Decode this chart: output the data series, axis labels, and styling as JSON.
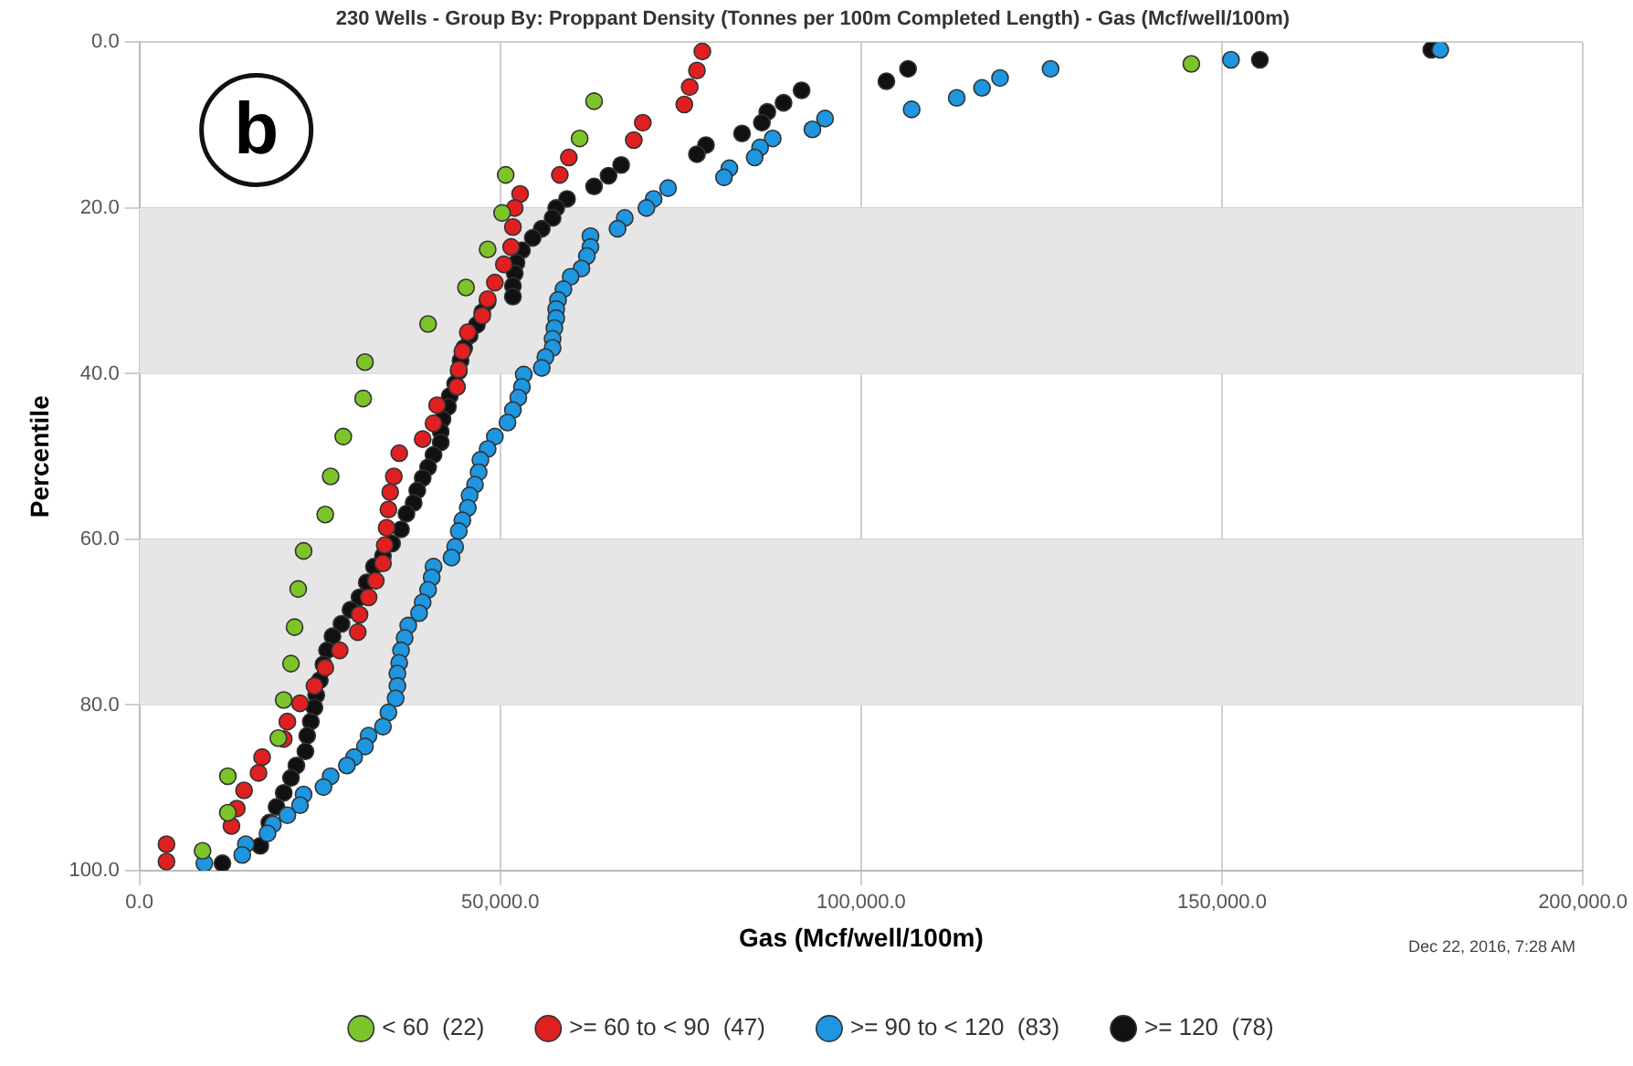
{
  "chart_data": {
    "type": "scatter",
    "title": "230 Wells - Group By: Proppant Density (Tonnes per 100m Completed Length) - Gas (Mcf/well/100m)",
    "xlabel": "Gas (Mcf/well/100m)",
    "ylabel": "Percentile",
    "annotations": [
      "b",
      "Dec 22, 2016, 7:28 AM"
    ],
    "xlim": [
      0,
      200000
    ],
    "xticks": [
      {
        "value": 0,
        "label": "0.0"
      },
      {
        "value": 50000,
        "label": "50,000.0"
      },
      {
        "value": 100000,
        "label": "100,000.0"
      },
      {
        "value": 150000,
        "label": "150,000.0"
      },
      {
        "value": 200000,
        "label": "200,000.0"
      }
    ],
    "ylim": [
      100,
      0
    ],
    "yticks": [
      {
        "value": 0,
        "label": "0.0"
      },
      {
        "value": 20,
        "label": "20.0"
      },
      {
        "value": 40,
        "label": "40.0"
      },
      {
        "value": 60,
        "label": "60.0"
      },
      {
        "value": 80,
        "label": "80.0"
      },
      {
        "value": 100,
        "label": "100.0"
      }
    ],
    "grid": true,
    "legend": "bottom",
    "marker": "circle",
    "bands": [
      {
        "axis": "y",
        "from": 20,
        "to": 40,
        "color": "#e6e6e6"
      },
      {
        "axis": "y",
        "from": 60,
        "to": 80,
        "color": "#e6e6e6"
      }
    ],
    "series": [
      {
        "name": "< 60  (22)",
        "color": "#7cc42a",
        "x": [
          145750,
          63000,
          61000,
          50750,
          50250,
          48250,
          45250,
          40000,
          31250,
          31000,
          28250,
          26500,
          25750,
          22750,
          22000,
          21500,
          21000,
          20000,
          19250,
          12250,
          12250,
          8750
        ],
        "values": [
          2.6,
          7.1,
          11.6,
          16,
          20.6,
          25,
          29.6,
          34,
          38.6,
          43,
          47.6,
          52.4,
          57,
          61.4,
          66,
          70.6,
          75,
          79.4,
          84,
          88.6,
          93,
          97.6
        ]
      },
      {
        "name": ">= 60 to < 90  (47)",
        "color": "#e02020",
        "x": [
          78000,
          77250,
          76250,
          75500,
          69750,
          68500,
          59500,
          58250,
          52750,
          52000,
          51750,
          51500,
          50500,
          49250,
          48250,
          47500,
          45500,
          44750,
          44250,
          44000,
          41250,
          40750,
          39250,
          36000,
          35250,
          34750,
          34500,
          34250,
          34000,
          33750,
          32750,
          31750,
          30500,
          30250,
          27750,
          25750,
          24250,
          22250,
          20500,
          20000,
          17000,
          16500,
          14500,
          13500,
          12750,
          3750,
          3750
        ],
        "values": [
          1.1,
          3.4,
          5.4,
          7.5,
          9.7,
          11.8,
          13.9,
          16,
          18.3,
          20,
          22.3,
          24.7,
          26.8,
          29,
          31,
          33,
          35,
          37.3,
          39.5,
          41.6,
          43.8,
          46,
          47.9,
          49.6,
          52.4,
          54.3,
          56.4,
          58.6,
          60.7,
          62.9,
          65,
          67,
          69.1,
          71.2,
          73.4,
          75.5,
          77.7,
          79.8,
          82,
          84.1,
          86.3,
          88.2,
          90.3,
          92.5,
          94.6,
          96.8,
          98.9
        ]
      },
      {
        "name": ">= 90 to < 120  (83)",
        "color": "#1e96e0",
        "x": [
          180250,
          151250,
          126250,
          119250,
          116750,
          113250,
          107000,
          95000,
          93250,
          87750,
          86000,
          85250,
          81750,
          81000,
          73250,
          71250,
          70250,
          67250,
          66250,
          62500,
          62500,
          62000,
          61250,
          59750,
          58750,
          58000,
          57750,
          57750,
          57500,
          57250,
          57250,
          56250,
          55750,
          53250,
          53000,
          52500,
          51750,
          51000,
          49250,
          48250,
          47250,
          47000,
          46500,
          45750,
          45500,
          44750,
          44250,
          43750,
          43250,
          40750,
          40500,
          40000,
          39250,
          38750,
          37250,
          36750,
          36250,
          36000,
          35750,
          35750,
          35500,
          34500,
          33750,
          31750,
          31250,
          29750,
          28750,
          26500,
          25500,
          22750,
          22250,
          20500,
          18500,
          17750,
          14750,
          14250,
          9000
        ],
        "values": [
          0.9,
          2.1,
          3.2,
          4.3,
          5.5,
          6.7,
          8.1,
          9.2,
          10.5,
          11.6,
          12.7,
          13.9,
          15.2,
          16.3,
          17.6,
          18.9,
          20,
          21.2,
          22.5,
          23.4,
          24.7,
          25.8,
          27.3,
          28.3,
          29.8,
          31.1,
          32.2,
          33.3,
          34.5,
          35.8,
          36.9,
          38,
          39.3,
          40.1,
          41.6,
          42.9,
          44.4,
          45.9,
          47.6,
          49.1,
          50.4,
          51.9,
          53.4,
          54.7,
          56.2,
          57.7,
          59,
          60.9,
          62.2,
          63.3,
          64.6,
          66.1,
          67.6,
          68.9,
          70.4,
          71.9,
          73.4,
          74.9,
          76.2,
          77.7,
          79.2,
          80.9,
          82.6,
          83.7,
          85,
          86.3,
          87.3,
          88.6,
          89.9,
          90.8,
          92.1,
          93.3,
          94.4,
          95.5,
          96.8,
          98.1,
          99.1
        ]
      },
      {
        "name": ">= 120  (78)",
        "color": "#111111",
        "x": [
          179000,
          155250,
          106500,
          103500,
          91750,
          89250,
          87000,
          86250,
          83500,
          78500,
          77250,
          66750,
          65000,
          63000,
          59250,
          57750,
          57250,
          55750,
          54500,
          53000,
          52250,
          52000,
          51750,
          51750,
          48250,
          47500,
          46750,
          45750,
          45000,
          44500,
          44250,
          43750,
          43000,
          42750,
          42000,
          41750,
          41750,
          40750,
          40000,
          39250,
          38500,
          38000,
          37000,
          36250,
          35000,
          33750,
          32500,
          31500,
          30500,
          29250,
          28000,
          26750,
          26000,
          25500,
          25000,
          24500,
          24250,
          23750,
          23250,
          23000,
          21750,
          21000,
          20000,
          19000,
          18000,
          16750,
          11500
        ],
        "values": [
          0.9,
          2.1,
          3.2,
          4.7,
          5.8,
          7.3,
          8.4,
          9.7,
          11,
          12.4,
          13.5,
          14.8,
          16.1,
          17.4,
          18.9,
          20,
          21.2,
          22.5,
          23.6,
          25.1,
          26.6,
          27.9,
          29.4,
          30.7,
          31.3,
          32.6,
          34.1,
          35.4,
          36.9,
          38.4,
          39.7,
          41.2,
          42.7,
          44,
          45.5,
          47,
          48.3,
          49.8,
          51.3,
          52.6,
          54.1,
          55.6,
          56.9,
          58.8,
          60.5,
          62,
          63.3,
          65.2,
          67,
          68.5,
          70.2,
          71.7,
          73.4,
          75.1,
          77,
          78.8,
          80.3,
          82,
          83.7,
          85.6,
          87.3,
          88.8,
          90.6,
          92.3,
          94.2,
          97,
          99.1
        ]
      }
    ]
  }
}
